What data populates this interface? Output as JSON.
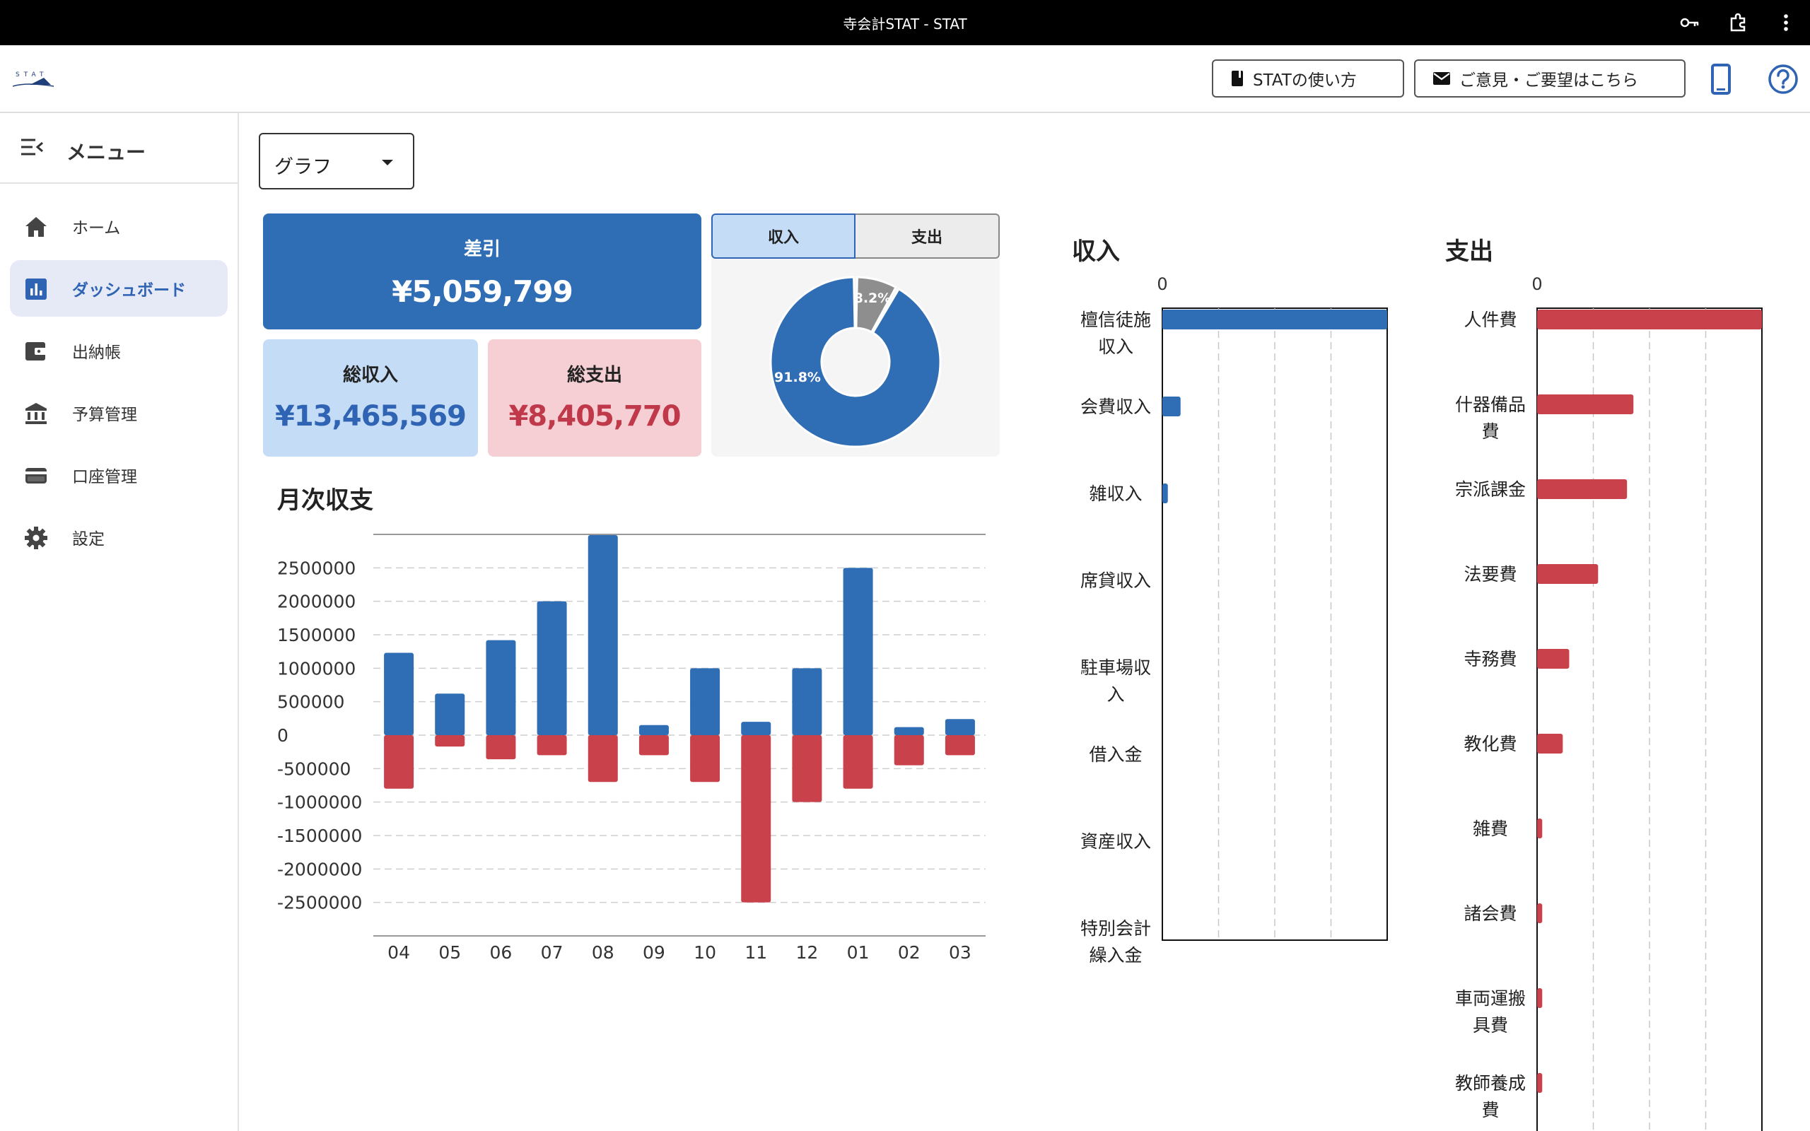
{
  "window": {
    "title": "寺会計STAT - STAT"
  },
  "header": {
    "logo_text": "STAT",
    "help_button": "STATの使い方",
    "feedback_button": "ご意見・ご要望はこちら"
  },
  "sidebar": {
    "menu_label": "メニュー",
    "items": [
      {
        "label": "ホーム",
        "icon": "home-icon"
      },
      {
        "label": "ダッシュボード",
        "icon": "bar-chart-icon",
        "active": true
      },
      {
        "label": "出納帳",
        "icon": "wallet-icon"
      },
      {
        "label": "予算管理",
        "icon": "bank-icon"
      },
      {
        "label": "口座管理",
        "icon": "card-icon"
      },
      {
        "label": "設定",
        "icon": "gear-icon"
      }
    ]
  },
  "view_select": {
    "value": "グラフ"
  },
  "summary": {
    "diff_label": "差引",
    "diff_value": "¥5,059,799",
    "income_label": "総収入",
    "income_value": "¥13,465,569",
    "expense_label": "総支出",
    "expense_value": "¥8,405,770"
  },
  "donut_tabs": {
    "income": "収入",
    "expense": "支出",
    "active": "income"
  },
  "colors": {
    "income": "#2f6db5",
    "expense": "#c9424b",
    "donut_other": "#8e8e8e"
  },
  "chart_data": [
    {
      "type": "pie",
      "title": "",
      "slices": [
        {
          "label": "91.8%",
          "value": 91.8
        },
        {
          "label": "8.2%",
          "value": 8.2
        }
      ]
    },
    {
      "type": "bar",
      "title": "月次収支",
      "categories": [
        "04",
        "05",
        "06",
        "07",
        "08",
        "09",
        "10",
        "11",
        "12",
        "01",
        "02",
        "03"
      ],
      "series": [
        {
          "values": [
            1230000,
            620000,
            1420000,
            2000000,
            2990000,
            150000,
            1000000,
            200000,
            1000000,
            2500000,
            120000,
            240000
          ]
        },
        {
          "values": [
            -800000,
            -170000,
            -360000,
            -300000,
            -700000,
            -300000,
            -700000,
            -2500000,
            -1000000,
            -800000,
            -450000,
            -300000
          ]
        }
      ],
      "yticks": [
        "2500000",
        "2000000",
        "1500000",
        "1000000",
        "500000",
        "0",
        "-500000",
        "-1000000",
        "-1500000",
        "-2000000",
        "-2500000"
      ],
      "ylim": [
        -3000000,
        3000000
      ],
      "grid": true
    },
    {
      "type": "bar",
      "orientation": "horizontal",
      "title": "収入",
      "x_tick": "0",
      "categories": [
        "檀信徒施収入",
        "会費収入",
        "雑収入",
        "席貸収入",
        "駐車場収入",
        "借入金",
        "資産収入",
        "特別会計繰入金"
      ],
      "values": [
        12360000,
        1000000,
        300000,
        0,
        0,
        0,
        0,
        0
      ],
      "xlim": [
        0,
        12360000
      ]
    },
    {
      "type": "bar",
      "orientation": "horizontal",
      "title": "支出",
      "x_tick": "0",
      "categories": [
        "人件費",
        "什器備品費",
        "宗派課金",
        "法要費",
        "寺務費",
        "教化費",
        "雑費",
        "諸会費",
        "車両運搬具費",
        "教師養成費"
      ],
      "values": [
        3500000,
        1500000,
        1400000,
        950000,
        500000,
        400000,
        80000,
        80000,
        80000,
        80000
      ],
      "xlim": [
        0,
        3500000
      ]
    }
  ]
}
